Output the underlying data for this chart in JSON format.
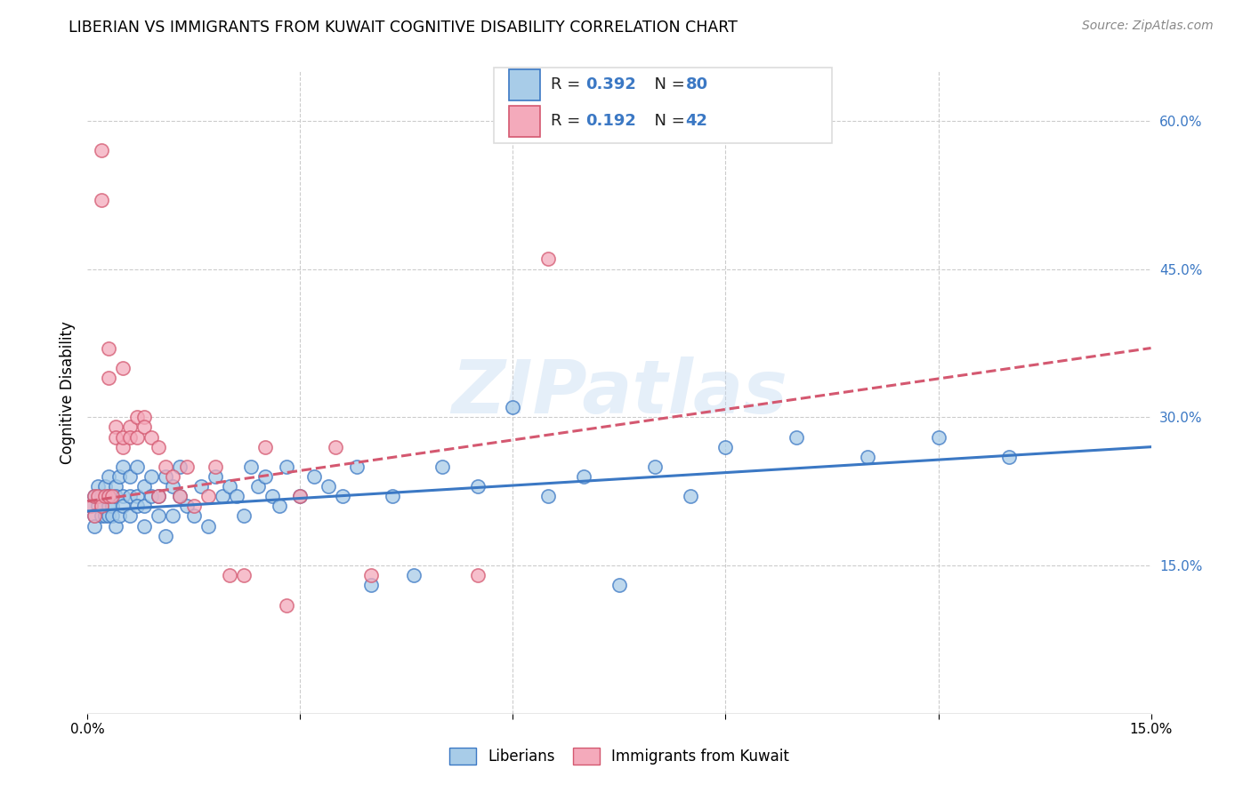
{
  "title": "LIBERIAN VS IMMIGRANTS FROM KUWAIT COGNITIVE DISABILITY CORRELATION CHART",
  "source": "Source: ZipAtlas.com",
  "ylabel": "Cognitive Disability",
  "xlim": [
    0.0,
    0.15
  ],
  "ylim": [
    0.0,
    0.65
  ],
  "yticks_right": [
    0.15,
    0.3,
    0.45,
    0.6
  ],
  "ytick_labels_right": [
    "15.0%",
    "30.0%",
    "45.0%",
    "60.0%"
  ],
  "watermark": "ZIPatlas",
  "color_liberian": "#A8CCE8",
  "color_kuwait": "#F4AABB",
  "color_line_liberian": "#3B78C4",
  "color_line_kuwait": "#D45870",
  "R_liberian": 0.392,
  "N_liberian": 80,
  "R_kuwait": 0.192,
  "N_kuwait": 42,
  "liberian_x": [
    0.0005,
    0.001,
    0.001,
    0.001,
    0.0015,
    0.0015,
    0.002,
    0.002,
    0.002,
    0.0025,
    0.0025,
    0.003,
    0.003,
    0.003,
    0.003,
    0.0035,
    0.0035,
    0.004,
    0.004,
    0.004,
    0.0045,
    0.0045,
    0.005,
    0.005,
    0.005,
    0.006,
    0.006,
    0.006,
    0.007,
    0.007,
    0.007,
    0.008,
    0.008,
    0.008,
    0.009,
    0.009,
    0.01,
    0.01,
    0.011,
    0.011,
    0.012,
    0.012,
    0.013,
    0.013,
    0.014,
    0.015,
    0.016,
    0.017,
    0.018,
    0.019,
    0.02,
    0.021,
    0.022,
    0.023,
    0.024,
    0.025,
    0.026,
    0.027,
    0.028,
    0.03,
    0.032,
    0.034,
    0.036,
    0.038,
    0.04,
    0.043,
    0.046,
    0.05,
    0.055,
    0.06,
    0.065,
    0.07,
    0.075,
    0.08,
    0.085,
    0.09,
    0.1,
    0.11,
    0.12,
    0.13
  ],
  "liberian_y": [
    0.21,
    0.22,
    0.2,
    0.19,
    0.23,
    0.21,
    0.22,
    0.21,
    0.2,
    0.23,
    0.2,
    0.22,
    0.24,
    0.21,
    0.2,
    0.21,
    0.2,
    0.23,
    0.22,
    0.19,
    0.24,
    0.2,
    0.25,
    0.22,
    0.21,
    0.22,
    0.24,
    0.2,
    0.25,
    0.22,
    0.21,
    0.23,
    0.21,
    0.19,
    0.24,
    0.22,
    0.22,
    0.2,
    0.24,
    0.18,
    0.23,
    0.2,
    0.25,
    0.22,
    0.21,
    0.2,
    0.23,
    0.19,
    0.24,
    0.22,
    0.23,
    0.22,
    0.2,
    0.25,
    0.23,
    0.24,
    0.22,
    0.21,
    0.25,
    0.22,
    0.24,
    0.23,
    0.22,
    0.25,
    0.13,
    0.22,
    0.14,
    0.25,
    0.23,
    0.31,
    0.22,
    0.24,
    0.13,
    0.25,
    0.22,
    0.27,
    0.28,
    0.26,
    0.28,
    0.26
  ],
  "kuwait_x": [
    0.0005,
    0.001,
    0.001,
    0.0015,
    0.002,
    0.002,
    0.002,
    0.0025,
    0.003,
    0.003,
    0.003,
    0.0035,
    0.004,
    0.004,
    0.005,
    0.005,
    0.005,
    0.006,
    0.006,
    0.007,
    0.007,
    0.008,
    0.008,
    0.009,
    0.01,
    0.01,
    0.011,
    0.012,
    0.013,
    0.014,
    0.015,
    0.017,
    0.018,
    0.02,
    0.022,
    0.025,
    0.028,
    0.03,
    0.035,
    0.04,
    0.055,
    0.065
  ],
  "kuwait_y": [
    0.21,
    0.22,
    0.2,
    0.22,
    0.57,
    0.52,
    0.21,
    0.22,
    0.37,
    0.34,
    0.22,
    0.22,
    0.29,
    0.28,
    0.27,
    0.35,
    0.28,
    0.29,
    0.28,
    0.3,
    0.28,
    0.3,
    0.29,
    0.28,
    0.27,
    0.22,
    0.25,
    0.24,
    0.22,
    0.25,
    0.21,
    0.22,
    0.25,
    0.14,
    0.14,
    0.27,
    0.11,
    0.22,
    0.27,
    0.14,
    0.14,
    0.46
  ]
}
